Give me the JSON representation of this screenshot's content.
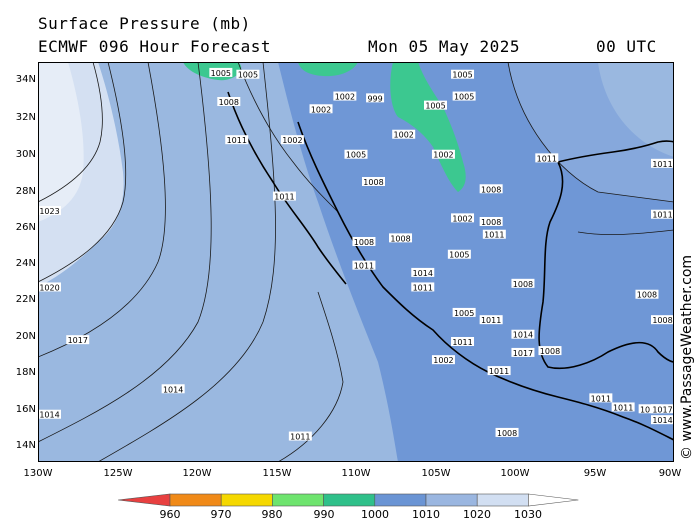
{
  "header": {
    "title": "Surface Pressure (mb)",
    "model": "ECMWF 096 Hour Forecast",
    "date": "Mon 05 May 2025",
    "time": "00 UTC"
  },
  "watermark": "© www.PassageWeather.com",
  "lat_labels": [
    "34N",
    "32N",
    "30N",
    "28N",
    "26N",
    "24N",
    "22N",
    "20N",
    "18N",
    "16N",
    "14N"
  ],
  "lon_labels": [
    "130W",
    "125W",
    "120W",
    "115W",
    "110W",
    "105W",
    "100W",
    "95W",
    "90W"
  ],
  "scale": {
    "labels": [
      "960",
      "970",
      "980",
      "990",
      "1000",
      "1010",
      "1020",
      "1030"
    ],
    "colors": [
      "#e84040",
      "#f08a18",
      "#f5d800",
      "#6ee46e",
      "#2fc08a",
      "#6a94d4",
      "#9ab6e0",
      "#d2dff2",
      "#ffffff"
    ]
  },
  "colors": {
    "ocean_low": "#6f97d6",
    "ocean_mid": "#9ab8e0",
    "ocean_high": "#d4e0f2",
    "ocean_highest": "#e8eef8",
    "land_low": "#3cc890"
  },
  "isobar_labels": [
    {
      "text": "1023",
      "lat": 26.8,
      "lon": -129.5
    },
    {
      "text": "1020",
      "lat": 22.6,
      "lon": -129.5
    },
    {
      "text": "1017",
      "lat": 19.7,
      "lon": -127.5
    },
    {
      "text": "1014",
      "lat": 17.0,
      "lon": -121.5
    },
    {
      "text": "1014",
      "lat": 15.6,
      "lon": -129.5
    },
    {
      "text": "1011",
      "lat": 14.4,
      "lon": -113.5
    },
    {
      "text": "1011",
      "lat": 30.7,
      "lon": -117.5
    },
    {
      "text": "1011",
      "lat": 27.6,
      "lon": -114.5
    },
    {
      "text": "1011",
      "lat": 23.8,
      "lon": -109.5
    },
    {
      "text": "1008",
      "lat": 32.8,
      "lon": -118.0
    },
    {
      "text": "1005",
      "lat": 34.4,
      "lon": -118.5
    },
    {
      "text": "1005",
      "lat": 34.3,
      "lon": -116.8
    },
    {
      "text": "1002",
      "lat": 30.7,
      "lon": -114.0
    },
    {
      "text": "1002",
      "lat": 32.4,
      "lon": -112.2
    },
    {
      "text": "1002",
      "lat": 33.1,
      "lon": -110.7
    },
    {
      "text": "999",
      "lat": 33.0,
      "lon": -108.8
    },
    {
      "text": "1005",
      "lat": 29.9,
      "lon": -110.0
    },
    {
      "text": "1005",
      "lat": 34.3,
      "lon": -103.3
    },
    {
      "text": "1005",
      "lat": 33.1,
      "lon": -103.2
    },
    {
      "text": "1005",
      "lat": 32.6,
      "lon": -105.0
    },
    {
      "text": "1002",
      "lat": 31.0,
      "lon": -107.0
    },
    {
      "text": "1002",
      "lat": 29.9,
      "lon": -104.5
    },
    {
      "text": "1008",
      "lat": 28.4,
      "lon": -108.9
    },
    {
      "text": "1008",
      "lat": 28.0,
      "lon": -101.5
    },
    {
      "text": "1008",
      "lat": 26.2,
      "lon": -101.5
    },
    {
      "text": "1002",
      "lat": 26.4,
      "lon": -103.3
    },
    {
      "text": "1008",
      "lat": 25.1,
      "lon": -109.5
    },
    {
      "text": "1008",
      "lat": 25.3,
      "lon": -107.2
    },
    {
      "text": "1005",
      "lat": 24.4,
      "lon": -103.5
    },
    {
      "text": "1011",
      "lat": 25.5,
      "lon": -101.3
    },
    {
      "text": "1011",
      "lat": 29.7,
      "lon": -98.0
    },
    {
      "text": "1011",
      "lat": 29.4,
      "lon": -90.5
    },
    {
      "text": "1011",
      "lat": 26.6,
      "lon": -90.5
    },
    {
      "text": "1008",
      "lat": 22.8,
      "lon": -99.5
    },
    {
      "text": "1008",
      "lat": 22.2,
      "lon": -91.7
    },
    {
      "text": "1008",
      "lat": 19.1,
      "lon": -97.8
    },
    {
      "text": "1008",
      "lat": 20.8,
      "lon": -90.4
    },
    {
      "text": "1008",
      "lat": 14.6,
      "lon": -100.5
    },
    {
      "text": "1011",
      "lat": 20.8,
      "lon": -101.5
    },
    {
      "text": "1005",
      "lat": 21.2,
      "lon": -103.2
    },
    {
      "text": "1011",
      "lat": 19.6,
      "lon": -103.3
    },
    {
      "text": "1002",
      "lat": 18.6,
      "lon": -104.5
    },
    {
      "text": "1017",
      "lat": 19.0,
      "lon": -99.5
    },
    {
      "text": "1014",
      "lat": 20.0,
      "lon": -99.5
    },
    {
      "text": "1011",
      "lat": 18.0,
      "lon": -101.0
    },
    {
      "text": "1014",
      "lat": 15.9,
      "lon": -91.5
    },
    {
      "text": "1011",
      "lat": 16.5,
      "lon": -94.6
    },
    {
      "text": "1011",
      "lat": 16.0,
      "lon": -93.2
    },
    {
      "text": "1017",
      "lat": 15.9,
      "lon": -90.5
    },
    {
      "text": "1014",
      "lat": 15.3,
      "lon": -90.3
    },
    {
      "text": "1011",
      "lat": 22.6,
      "lon": -105.8
    },
    {
      "text": "1014",
      "lat": 23.4,
      "lon": -105.8
    }
  ]
}
